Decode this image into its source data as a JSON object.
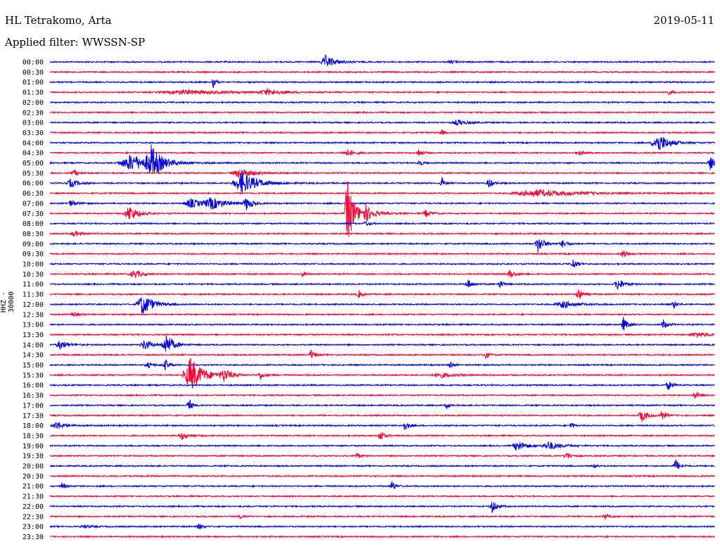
{
  "header": {
    "station": "HL Tetrakomo, Arta",
    "date": "2019-05-11",
    "filter": "Applied filter: WWSSN-SP"
  },
  "chart_data": {
    "type": "line",
    "title": "HL Tetrakomo, Arta",
    "ylabel": "HHZ - 30000",
    "rows": [
      "00:00",
      "00:30",
      "01:00",
      "01:30",
      "02:00",
      "02:30",
      "03:00",
      "03:30",
      "04:00",
      "04:30",
      "05:00",
      "05:30",
      "06:00",
      "06:30",
      "07:00",
      "07:30",
      "08:00",
      "08:30",
      "09:00",
      "09:30",
      "10:00",
      "10:30",
      "11:00",
      "11:30",
      "12:00",
      "12:30",
      "13:00",
      "13:30",
      "14:00",
      "14:30",
      "15:00",
      "15:30",
      "16:00",
      "16:30",
      "17:00",
      "17:30",
      "18:00",
      "18:30",
      "19:00",
      "19:30",
      "20:00",
      "20:30",
      "21:00",
      "21:30",
      "22:00",
      "22:30",
      "23:00",
      "23:30"
    ],
    "colors": {
      "even": "#0000dd",
      "odd": "#ff0033"
    },
    "grid": false
  }
}
